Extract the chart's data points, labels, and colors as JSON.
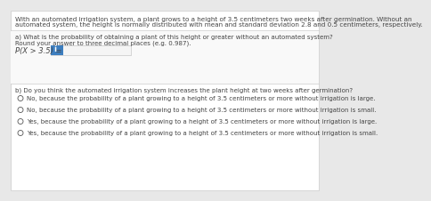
{
  "bg_color": "#e8e8e8",
  "panel_color": "#ffffff",
  "header_text_line1": "With an automated irrigation system, a plant grows to a height of 3.5 centimeters two weeks after germination. Without an",
  "header_text_line2": "automated system, the height is normally distributed with mean and standard deviation 2.8 and 0.5 centimeters, respectively.",
  "section_a_label": "a) What is the probability of obtaining a plant of this height or greater without an automated system?",
  "section_a_sub": "Round your answer to three decimal places (e.g. 0.987).",
  "section_a_eq": "P(X > 3.5) =",
  "input_box_color": "#3d7ebf",
  "input_char": "i",
  "input_text_color": "#ffffff",
  "input_box_bg": "#f5f5f5",
  "section_b_label": "b) Do you think the automated irrigation system increases the plant height at two weeks after germination?",
  "options": [
    "No, because the probability of a plant growing to a height of 3.5 centimeters or more without irrigation is large.",
    "No, because the probability of a plant growing to a height of 3.5 centimeters or more without irrigation is small.",
    "Yes, because the probability of a plant growing to a height of 3.5 centimeters or more without irrigation is large.",
    "Yes, because the probability of a plant growing to a height of 3.5 centimeters or more without irrigation is small."
  ],
  "header_fontsize": 5.2,
  "body_fontsize": 5.0,
  "eq_fontsize": 6.0,
  "divider_color": "#cccccc",
  "text_color": "#444444",
  "section_header_color": "#555555"
}
